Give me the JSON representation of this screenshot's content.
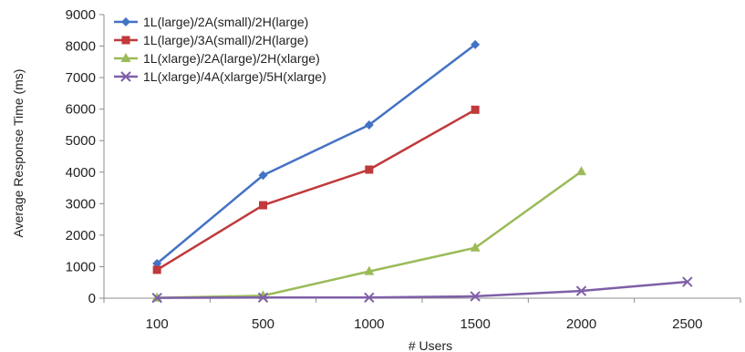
{
  "chart_data": {
    "type": "line",
    "categories": [
      "100",
      "500",
      "1000",
      "1500",
      "2000",
      "2500"
    ],
    "xlabel": "# Users",
    "ylabel": "Average Response Time (ms)",
    "ylim": [
      0,
      9000
    ],
    "yticks": [
      0,
      1000,
      2000,
      3000,
      4000,
      5000,
      6000,
      7000,
      8000,
      9000
    ],
    "grid": false,
    "legend": "top-left",
    "series": [
      {
        "name": "1L(large)/2A(small)/2H(large)",
        "color": "#4472c4",
        "marker": "diamond",
        "values": [
          1100,
          3900,
          5500,
          8050,
          null,
          null
        ]
      },
      {
        "name": "1L(large)/3A(small)/2H(large)",
        "color": "#c0393b",
        "marker": "square",
        "values": [
          900,
          2950,
          4080,
          5980,
          null,
          null
        ]
      },
      {
        "name": "1L(xlarge)/2A(large)/2H(xlarge)",
        "color": "#9bbb59",
        "marker": "triangle",
        "values": [
          10,
          80,
          850,
          1600,
          4020,
          null
        ]
      },
      {
        "name": "1L(xlarge)/4A(xlarge)/5H(xlarge)",
        "color": "#7f5fa8",
        "marker": "x",
        "values": [
          10,
          20,
          20,
          60,
          230,
          520
        ]
      }
    ]
  }
}
